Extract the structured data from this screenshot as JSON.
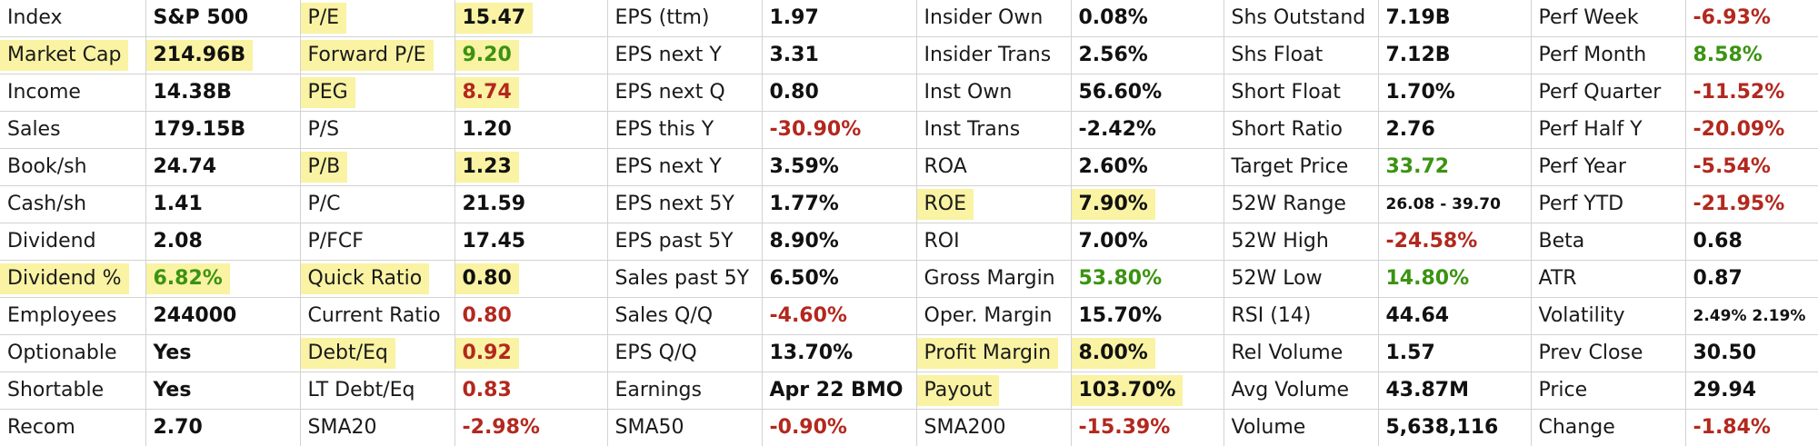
{
  "colors": {
    "highlight": "#f9f3a3",
    "negative": "#b3281e",
    "positive": "#3b9311",
    "grid": "#d2d2d2"
  },
  "rows": [
    [
      {
        "label": "Index",
        "value": "S&P 500"
      },
      {
        "label": "P/E",
        "value": "15.47",
        "hl": true
      },
      {
        "label": "EPS (ttm)",
        "value": "1.97"
      },
      {
        "label": "Insider Own",
        "value": "0.08%"
      },
      {
        "label": "Shs Outstand",
        "value": "7.19B"
      },
      {
        "label": "Perf Week",
        "value": "-6.93%",
        "color": "neg"
      }
    ],
    [
      {
        "label": "Market Cap",
        "value": "214.96B",
        "hl": true
      },
      {
        "label": "Forward P/E",
        "value": "9.20",
        "hl": true,
        "color": "pos"
      },
      {
        "label": "EPS next Y",
        "value": "3.31"
      },
      {
        "label": "Insider Trans",
        "value": "2.56%"
      },
      {
        "label": "Shs Float",
        "value": "7.12B"
      },
      {
        "label": "Perf Month",
        "value": "8.58%",
        "color": "pos"
      }
    ],
    [
      {
        "label": "Income",
        "value": "14.38B"
      },
      {
        "label": "PEG",
        "value": "8.74",
        "hl": true,
        "color": "neg"
      },
      {
        "label": "EPS next Q",
        "value": "0.80"
      },
      {
        "label": "Inst Own",
        "value": "56.60%"
      },
      {
        "label": "Short Float",
        "value": "1.70%"
      },
      {
        "label": "Perf Quarter",
        "value": "-11.52%",
        "color": "neg"
      }
    ],
    [
      {
        "label": "Sales",
        "value": "179.15B"
      },
      {
        "label": "P/S",
        "value": "1.20"
      },
      {
        "label": "EPS this Y",
        "value": "-30.90%",
        "color": "neg"
      },
      {
        "label": "Inst Trans",
        "value": "-2.42%"
      },
      {
        "label": "Short Ratio",
        "value": "2.76"
      },
      {
        "label": "Perf Half Y",
        "value": "-20.09%",
        "color": "neg"
      }
    ],
    [
      {
        "label": "Book/sh",
        "value": "24.74"
      },
      {
        "label": "P/B",
        "value": "1.23",
        "hl": true
      },
      {
        "label": "EPS next Y",
        "value": "3.59%"
      },
      {
        "label": "ROA",
        "value": "2.60%"
      },
      {
        "label": "Target Price",
        "value": "33.72",
        "color": "pos"
      },
      {
        "label": "Perf Year",
        "value": "-5.54%",
        "color": "neg"
      }
    ],
    [
      {
        "label": "Cash/sh",
        "value": "1.41"
      },
      {
        "label": "P/C",
        "value": "21.59"
      },
      {
        "label": "EPS next 5Y",
        "value": "1.77%"
      },
      {
        "label": "ROE",
        "value": "7.90%",
        "hl": true
      },
      {
        "label": "52W Range",
        "value": "26.08 - 39.70",
        "small": true
      },
      {
        "label": "Perf YTD",
        "value": "-21.95%",
        "color": "neg"
      }
    ],
    [
      {
        "label": "Dividend",
        "value": "2.08"
      },
      {
        "label": "P/FCF",
        "value": "17.45"
      },
      {
        "label": "EPS past 5Y",
        "value": "8.90%"
      },
      {
        "label": "ROI",
        "value": "7.00%"
      },
      {
        "label": "52W High",
        "value": "-24.58%",
        "color": "neg"
      },
      {
        "label": "Beta",
        "value": "0.68"
      }
    ],
    [
      {
        "label": "Dividend %",
        "value": "6.82%",
        "hl": true,
        "color": "pos"
      },
      {
        "label": "Quick Ratio",
        "value": "0.80",
        "hl": true
      },
      {
        "label": "Sales past 5Y",
        "value": "6.50%"
      },
      {
        "label": "Gross Margin",
        "value": "53.80%",
        "color": "pos"
      },
      {
        "label": "52W Low",
        "value": "14.80%",
        "color": "pos"
      },
      {
        "label": "ATR",
        "value": "0.87"
      }
    ],
    [
      {
        "label": "Employees",
        "value": "244000"
      },
      {
        "label": "Current Ratio",
        "value": "0.80",
        "color": "neg"
      },
      {
        "label": "Sales Q/Q",
        "value": "-4.60%",
        "color": "neg"
      },
      {
        "label": "Oper. Margin",
        "value": "15.70%"
      },
      {
        "label": "RSI (14)",
        "value": "44.64"
      },
      {
        "label": "Volatility",
        "value": "2.49% 2.19%",
        "small": true
      }
    ],
    [
      {
        "label": "Optionable",
        "value": "Yes"
      },
      {
        "label": "Debt/Eq",
        "value": "0.92",
        "hl": true,
        "color": "neg"
      },
      {
        "label": "EPS Q/Q",
        "value": "13.70%"
      },
      {
        "label": "Profit Margin",
        "value": "8.00%",
        "hl": true
      },
      {
        "label": "Rel Volume",
        "value": "1.57"
      },
      {
        "label": "Prev Close",
        "value": "30.50"
      }
    ],
    [
      {
        "label": "Shortable",
        "value": "Yes"
      },
      {
        "label": "LT Debt/Eq",
        "value": "0.83",
        "color": "neg"
      },
      {
        "label": "Earnings",
        "value": "Apr 22 BMO"
      },
      {
        "label": "Payout",
        "value": "103.70%",
        "hl": true
      },
      {
        "label": "Avg Volume",
        "value": "43.87M"
      },
      {
        "label": "Price",
        "value": "29.94"
      }
    ],
    [
      {
        "label": "Recom",
        "value": "2.70"
      },
      {
        "label": "SMA20",
        "value": "-2.98%",
        "color": "neg"
      },
      {
        "label": "SMA50",
        "value": "-0.90%",
        "color": "neg"
      },
      {
        "label": "SMA200",
        "value": "-15.39%",
        "color": "neg"
      },
      {
        "label": "Volume",
        "value": "5,638,116"
      },
      {
        "label": "Change",
        "value": "-1.84%",
        "color": "neg"
      }
    ]
  ]
}
